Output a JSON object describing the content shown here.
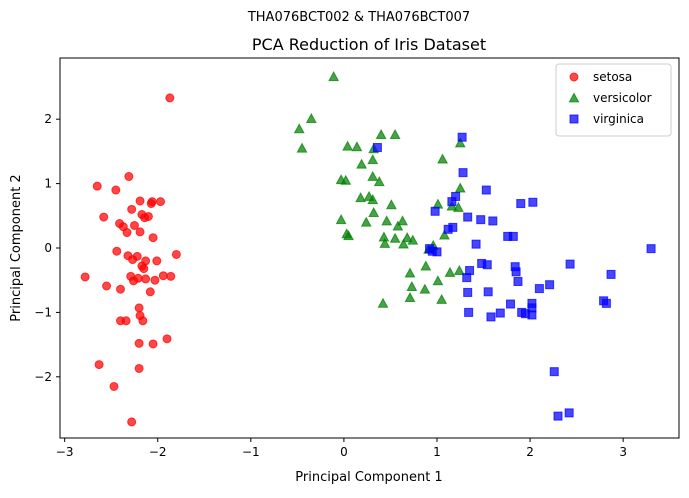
{
  "figure": {
    "suptitle": "THA076BCT002 & THA076BCT007"
  },
  "chart_data": {
    "type": "scatter",
    "title": "PCA Reduction of Iris Dataset",
    "xlabel": "Principal Component 1",
    "ylabel": "Principal Component 2",
    "xlim": [
      -3.05,
      3.6
    ],
    "ylim": [
      -2.95,
      2.95
    ],
    "xticks": [
      -3,
      -2,
      -1,
      0,
      1,
      2,
      3
    ],
    "yticks": [
      -2,
      -1,
      0,
      1,
      2
    ],
    "grid": false,
    "legend_position": "top-right",
    "series": [
      {
        "name": "setosa",
        "color": "#ff0000",
        "marker": "circle",
        "points": [
          [
            -1.87,
            2.33
          ],
          [
            -2.65,
            0.96
          ],
          [
            -2.45,
            0.9
          ],
          [
            -2.31,
            1.11
          ],
          [
            -2.19,
            0.73
          ],
          [
            -2.06,
            0.72
          ],
          [
            -1.97,
            0.72
          ],
          [
            -2.07,
            0.69
          ],
          [
            -2.28,
            0.6
          ],
          [
            -2.58,
            0.48
          ],
          [
            -2.17,
            0.52
          ],
          [
            -2.14,
            0.47
          ],
          [
            -2.1,
            0.49
          ],
          [
            -2.41,
            0.38
          ],
          [
            -2.37,
            0.33
          ],
          [
            -2.25,
            0.35
          ],
          [
            -2.33,
            0.24
          ],
          [
            -2.19,
            0.25
          ],
          [
            -2.05,
            0.16
          ],
          [
            -1.8,
            -0.1
          ],
          [
            -2.32,
            -0.12
          ],
          [
            -2.22,
            -0.13
          ],
          [
            -2.44,
            -0.05
          ],
          [
            -2.27,
            -0.18
          ],
          [
            -2.13,
            -0.2
          ],
          [
            -2.01,
            -0.2
          ],
          [
            -2.17,
            -0.28
          ],
          [
            -2.15,
            -0.32
          ],
          [
            -2.78,
            -0.45
          ],
          [
            -2.29,
            -0.44
          ],
          [
            -2.21,
            -0.47
          ],
          [
            -2.26,
            -0.51
          ],
          [
            -1.94,
            -0.43
          ],
          [
            -1.86,
            -0.44
          ],
          [
            -2.03,
            -0.5
          ],
          [
            -2.13,
            -0.48
          ],
          [
            -2.55,
            -0.59
          ],
          [
            -2.4,
            -0.64
          ],
          [
            -2.08,
            -0.68
          ],
          [
            -2.2,
            -0.93
          ],
          [
            -2.4,
            -1.13
          ],
          [
            -2.34,
            -1.13
          ],
          [
            -2.19,
            -1.05
          ],
          [
            -2.16,
            -1.13
          ],
          [
            -1.9,
            -1.41
          ],
          [
            -2.2,
            -1.48
          ],
          [
            -2.05,
            -1.49
          ],
          [
            -2.63,
            -1.81
          ],
          [
            -2.2,
            -1.87
          ],
          [
            -2.47,
            -2.15
          ],
          [
            -2.28,
            -2.7
          ]
        ]
      },
      {
        "name": "versicolor",
        "color": "#008000",
        "marker": "triangle",
        "points": [
          [
            -0.11,
            2.66
          ],
          [
            -0.35,
            2.01
          ],
          [
            -0.48,
            1.85
          ],
          [
            -0.45,
            1.55
          ],
          [
            0.4,
            1.76
          ],
          [
            0.55,
            1.76
          ],
          [
            0.04,
            1.58
          ],
          [
            0.14,
            1.57
          ],
          [
            0.32,
            1.54
          ],
          [
            1.25,
            1.63
          ],
          [
            1.06,
            1.38
          ],
          [
            0.31,
            1.37
          ],
          [
            0.19,
            1.3
          ],
          [
            0.31,
            1.11
          ],
          [
            -0.03,
            1.06
          ],
          [
            0.02,
            1.05
          ],
          [
            0.38,
            1.03
          ],
          [
            1.25,
            0.93
          ],
          [
            0.27,
            0.8
          ],
          [
            0.18,
            0.78
          ],
          [
            0.31,
            0.75
          ],
          [
            0.51,
            0.67
          ],
          [
            1.01,
            0.68
          ],
          [
            1.16,
            0.65
          ],
          [
            1.23,
            0.63
          ],
          [
            0.32,
            0.55
          ],
          [
            0.46,
            0.42
          ],
          [
            0.63,
            0.42
          ],
          [
            -0.03,
            0.44
          ],
          [
            0.24,
            0.4
          ],
          [
            0.58,
            0.34
          ],
          [
            1.08,
            0.2
          ],
          [
            0.03,
            0.22
          ],
          [
            0.05,
            0.19
          ],
          [
            0.43,
            0.17
          ],
          [
            0.55,
            0.15
          ],
          [
            0.68,
            0.16
          ],
          [
            0.74,
            0.12
          ],
          [
            0.64,
            0.06
          ],
          [
            0.44,
            0.07
          ],
          [
            0.96,
            0.04
          ],
          [
            0.91,
            -0.02
          ],
          [
            1.24,
            -0.35
          ],
          [
            0.71,
            -0.39
          ],
          [
            1.14,
            -0.38
          ],
          [
            0.88,
            -0.28
          ],
          [
            0.73,
            -0.6
          ],
          [
            0.71,
            -0.77
          ],
          [
            0.87,
            -0.64
          ],
          [
            1.01,
            -0.51
          ],
          [
            1.05,
            -0.8
          ],
          [
            0.42,
            -0.86
          ]
        ]
      },
      {
        "name": "virginica",
        "color": "#0000ff",
        "marker": "square",
        "points": [
          [
            1.27,
            1.72
          ],
          [
            0.36,
            1.56
          ],
          [
            1.2,
            0.8
          ],
          [
            1.53,
            0.9
          ],
          [
            1.16,
            0.72
          ],
          [
            1.28,
            1.17
          ],
          [
            1.33,
            0.48
          ],
          [
            1.47,
            0.44
          ],
          [
            1.6,
            0.42
          ],
          [
            0.98,
            0.57
          ],
          [
            1.9,
            0.69
          ],
          [
            2.03,
            0.71
          ],
          [
            1.12,
            0.29
          ],
          [
            1.17,
            0.32
          ],
          [
            1.76,
            0.18
          ],
          [
            1.82,
            0.18
          ],
          [
            1.42,
            0.06
          ],
          [
            0.92,
            -0.01
          ],
          [
            0.95,
            -0.05
          ],
          [
            1.0,
            -0.06
          ],
          [
            1.48,
            -0.24
          ],
          [
            1.54,
            -0.26
          ],
          [
            1.35,
            -0.35
          ],
          [
            1.84,
            -0.29
          ],
          [
            1.85,
            -0.37
          ],
          [
            2.21,
            -0.57
          ],
          [
            2.1,
            -0.63
          ],
          [
            2.43,
            -0.25
          ],
          [
            2.87,
            -0.41
          ],
          [
            3.3,
            -0.01
          ],
          [
            1.32,
            -0.46
          ],
          [
            1.55,
            -0.68
          ],
          [
            1.87,
            -0.52
          ],
          [
            1.33,
            -0.69
          ],
          [
            1.79,
            -0.87
          ],
          [
            2.02,
            -0.86
          ],
          [
            2.02,
            -0.93
          ],
          [
            2.79,
            -0.82
          ],
          [
            2.82,
            -0.86
          ],
          [
            1.91,
            -1.0
          ],
          [
            1.95,
            -1.02
          ],
          [
            2.02,
            -1.04
          ],
          [
            1.68,
            -1.01
          ],
          [
            1.58,
            -1.07
          ],
          [
            1.34,
            -1.0
          ],
          [
            2.26,
            -1.92
          ],
          [
            2.3,
            -2.61
          ],
          [
            2.42,
            -2.56
          ]
        ]
      }
    ]
  }
}
